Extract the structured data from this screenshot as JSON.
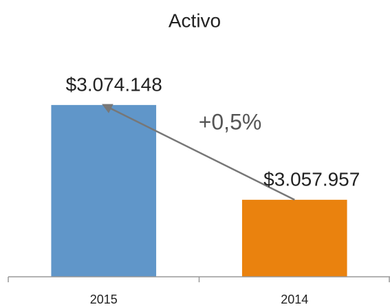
{
  "chart_data": {
    "type": "bar",
    "title": "Activo",
    "categories": [
      "2015",
      "2014"
    ],
    "series": [
      {
        "name": "Activo",
        "values": [
          3074148,
          3057957
        ],
        "value_labels": [
          "$3.074.148",
          "$3.057.957"
        ],
        "colors": [
          "#6096c9",
          "#ea820e"
        ]
      }
    ],
    "ylim": [
      3044800,
      3080000
    ],
    "annotation": "+0,5%"
  }
}
